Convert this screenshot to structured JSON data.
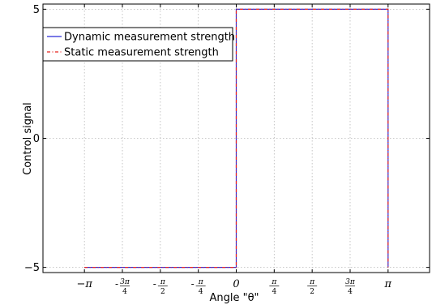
{
  "chart_data": {
    "type": "line",
    "xlabel": "Angle \"θ\"",
    "ylabel": "Control signal",
    "xlim": [
      -4.0,
      4.0
    ],
    "ylim": [
      -5.2,
      5.2
    ],
    "grid": true,
    "legend_position": "top-left",
    "x_ticks": [
      {
        "value": -3.14159,
        "kind": "plain",
        "label": "−π"
      },
      {
        "value": -2.35619,
        "kind": "frac",
        "sign": "-",
        "num": "3π",
        "den": "4"
      },
      {
        "value": -1.5708,
        "kind": "frac",
        "sign": "-",
        "num": "π",
        "den": "2"
      },
      {
        "value": -0.785398,
        "kind": "frac",
        "sign": "-",
        "num": "π",
        "den": "4"
      },
      {
        "value": 0,
        "kind": "plain",
        "label": "0"
      },
      {
        "value": 0.785398,
        "kind": "frac",
        "sign": "",
        "num": "π",
        "den": "4"
      },
      {
        "value": 1.5708,
        "kind": "frac",
        "sign": "",
        "num": "π",
        "den": "2"
      },
      {
        "value": 2.35619,
        "kind": "frac",
        "sign": "",
        "num": "3π",
        "den": "4"
      },
      {
        "value": 3.14159,
        "kind": "plain",
        "label": "π"
      }
    ],
    "y_ticks": [
      {
        "value": 5,
        "label": "5"
      },
      {
        "value": 0,
        "label": "0"
      },
      {
        "value": -5,
        "label": "−5"
      }
    ],
    "series": [
      {
        "name": "Dynamic measurement strength",
        "color": "#2b2bd6",
        "style": "solid",
        "x": [
          -3.14159,
          0,
          0,
          3.14159,
          3.14159
        ],
        "y": [
          -5,
          -5,
          5,
          5,
          -5
        ]
      },
      {
        "name": "Static measurement strength",
        "color": "#e8241f",
        "style": "dashdot",
        "x": [
          -3.14159,
          0,
          0,
          3.14159,
          3.14159
        ],
        "y": [
          -5,
          -5,
          5,
          5,
          -5
        ]
      }
    ]
  }
}
